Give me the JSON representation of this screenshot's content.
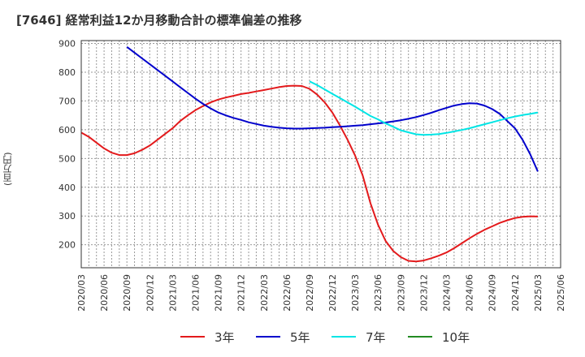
{
  "chart_title": "[7646]  経常利益12か月移動合計の標準偏差の推移",
  "chart_data": {
    "type": "line",
    "title": "[7646]  経常利益12か月移動合計の標準偏差の推移",
    "xlabel": "",
    "ylabel": "(百万円)",
    "ylim": [
      120,
      910
    ],
    "yticks": [
      200,
      300,
      400,
      500,
      600,
      700,
      800,
      900
    ],
    "x_tick_labels": [
      "2020/03",
      "2020/06",
      "2020/09",
      "2020/12",
      "2021/03",
      "2021/06",
      "2021/09",
      "2021/12",
      "2022/03",
      "2022/06",
      "2022/09",
      "2022/12",
      "2023/03",
      "2023/06",
      "2023/09",
      "2023/12",
      "2024/03",
      "2024/06",
      "2024/09",
      "2024/12",
      "2025/03",
      "2025/06"
    ],
    "grid": true,
    "legend_position": "bottom",
    "series": [
      {
        "name": "3年",
        "color": "#e31a1c",
        "x": [
          "2020/03",
          "2020/04",
          "2020/05",
          "2020/06",
          "2020/07",
          "2020/08",
          "2020/09",
          "2020/10",
          "2020/11",
          "2020/12",
          "2021/01",
          "2021/02",
          "2021/03",
          "2021/04",
          "2021/05",
          "2021/06",
          "2021/07",
          "2021/08",
          "2021/09",
          "2021/10",
          "2021/11",
          "2021/12",
          "2022/01",
          "2022/02",
          "2022/03",
          "2022/04",
          "2022/05",
          "2022/06",
          "2022/07",
          "2022/08",
          "2022/09",
          "2022/10",
          "2022/11",
          "2022/12",
          "2023/01",
          "2023/02",
          "2023/03",
          "2023/04",
          "2023/05",
          "2023/06",
          "2023/07",
          "2023/08",
          "2023/09",
          "2023/10",
          "2023/11",
          "2023/12",
          "2024/01",
          "2024/02",
          "2024/03",
          "2024/04",
          "2024/05",
          "2024/06",
          "2024/07",
          "2024/08",
          "2024/09",
          "2024/10",
          "2024/11",
          "2024/12",
          "2025/01",
          "2025/02",
          "2025/03"
        ],
        "values": [
          590,
          575,
          555,
          535,
          520,
          512,
          512,
          518,
          530,
          545,
          565,
          585,
          605,
          630,
          650,
          668,
          682,
          695,
          705,
          712,
          718,
          724,
          728,
          733,
          738,
          743,
          748,
          752,
          753,
          752,
          742,
          722,
          695,
          660,
          615,
          565,
          510,
          440,
          345,
          270,
          213,
          178,
          157,
          144,
          142,
          145,
          153,
          162,
          173,
          188,
          205,
          222,
          238,
          252,
          264,
          276,
          285,
          293,
          297,
          299,
          298
        ]
      },
      {
        "name": "5年",
        "color": "#0000cc",
        "x": [
          "2020/09",
          "2020/10",
          "2020/11",
          "2020/12",
          "2021/01",
          "2021/02",
          "2021/03",
          "2021/04",
          "2021/05",
          "2021/06",
          "2021/07",
          "2021/08",
          "2021/09",
          "2021/10",
          "2021/11",
          "2021/12",
          "2022/01",
          "2022/02",
          "2022/03",
          "2022/04",
          "2022/05",
          "2022/06",
          "2022/07",
          "2022/08",
          "2022/09",
          "2022/10",
          "2022/11",
          "2022/12",
          "2023/01",
          "2023/02",
          "2023/03",
          "2023/04",
          "2023/05",
          "2023/06",
          "2023/07",
          "2023/08",
          "2023/09",
          "2023/10",
          "2023/11",
          "2023/12",
          "2024/01",
          "2024/02",
          "2024/03",
          "2024/04",
          "2024/05",
          "2024/06",
          "2024/07",
          "2024/08",
          "2024/09",
          "2024/10",
          "2024/11",
          "2024/12",
          "2025/01",
          "2025/02",
          "2025/03"
        ],
        "values": [
          888,
          868,
          848,
          828,
          808,
          788,
          768,
          748,
          728,
          708,
          690,
          674,
          660,
          650,
          641,
          634,
          626,
          620,
          614,
          610,
          607,
          605,
          604,
          604,
          605,
          606,
          607,
          609,
          610,
          612,
          614,
          616,
          619,
          622,
          625,
          629,
          633,
          638,
          644,
          651,
          659,
          668,
          676,
          684,
          689,
          692,
          691,
          684,
          672,
          655,
          630,
          605,
          565,
          515,
          455
        ]
      },
      {
        "name": "7年",
        "color": "#00e5e5",
        "x": [
          "2022/09",
          "2022/10",
          "2022/11",
          "2022/12",
          "2023/01",
          "2023/02",
          "2023/03",
          "2023/04",
          "2023/05",
          "2023/06",
          "2023/07",
          "2023/08",
          "2023/09",
          "2023/10",
          "2023/11",
          "2023/12",
          "2024/01",
          "2024/02",
          "2024/03",
          "2024/04",
          "2024/05",
          "2024/06",
          "2024/07",
          "2024/08",
          "2024/09",
          "2024/10",
          "2024/11",
          "2024/12",
          "2025/01",
          "2025/02",
          "2025/03"
        ],
        "values": [
          768,
          755,
          740,
          725,
          710,
          695,
          680,
          664,
          648,
          636,
          622,
          610,
          598,
          591,
          584,
          582,
          583,
          585,
          589,
          594,
          599,
          605,
          612,
          619,
          626,
          633,
          640,
          646,
          651,
          655,
          660
        ]
      },
      {
        "name": "10年",
        "color": "#228b22",
        "x": [],
        "values": []
      }
    ]
  }
}
